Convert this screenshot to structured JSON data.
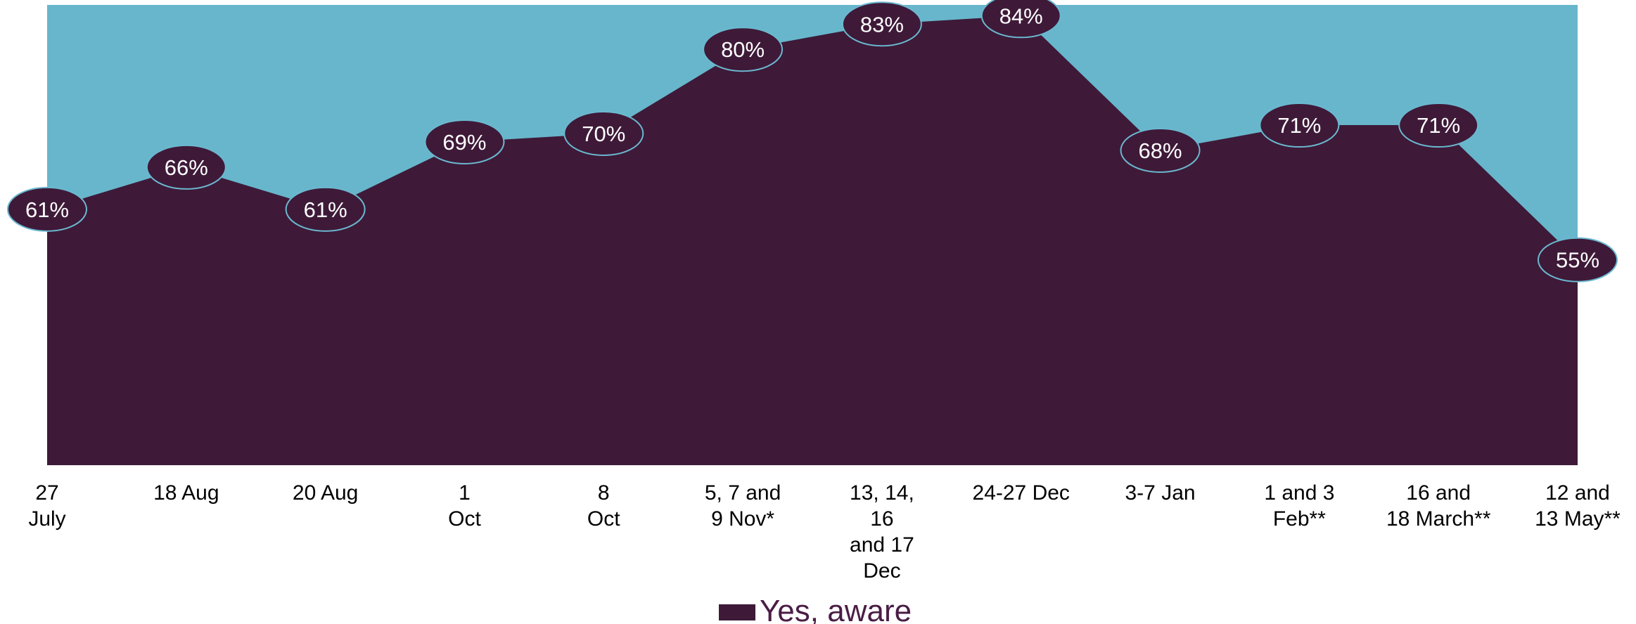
{
  "chart_data": {
    "type": "area",
    "title": "",
    "xlabel": "",
    "ylabel": "",
    "ylim": [
      0,
      100
    ],
    "grid": false,
    "legend_position": "bottom-center",
    "categories": [
      [
        "27",
        "July"
      ],
      [
        "18 Aug"
      ],
      [
        "20 Aug"
      ],
      [
        "1",
        "Oct"
      ],
      [
        "8",
        "Oct"
      ],
      [
        "5, 7 and",
        "9 Nov*"
      ],
      [
        "13, 14,",
        "16",
        "and 17",
        "Dec"
      ],
      [
        "24-27 Dec"
      ],
      [
        "3-7 Jan"
      ],
      [
        "1 and 3",
        "Feb**"
      ],
      [
        "16 and",
        "18 March**"
      ],
      [
        "12 and",
        "13 May**"
      ]
    ],
    "series": [
      {
        "name": "Yes, aware",
        "values": [
          61,
          66,
          61,
          69,
          70,
          80,
          83,
          84,
          68,
          71,
          71,
          55
        ],
        "labels": [
          "61%",
          "66%",
          "61%",
          "69%",
          "70%",
          "80%",
          "83%",
          "84%",
          "68%",
          "71%",
          "71%",
          "55%"
        ]
      }
    ],
    "colors": {
      "series_fill": "#3e1a38",
      "background_fill": "#67b6cc",
      "label_outline": "#6bb8d0",
      "label_text": "#ffffff",
      "legend_text": "#4a1d45"
    }
  }
}
